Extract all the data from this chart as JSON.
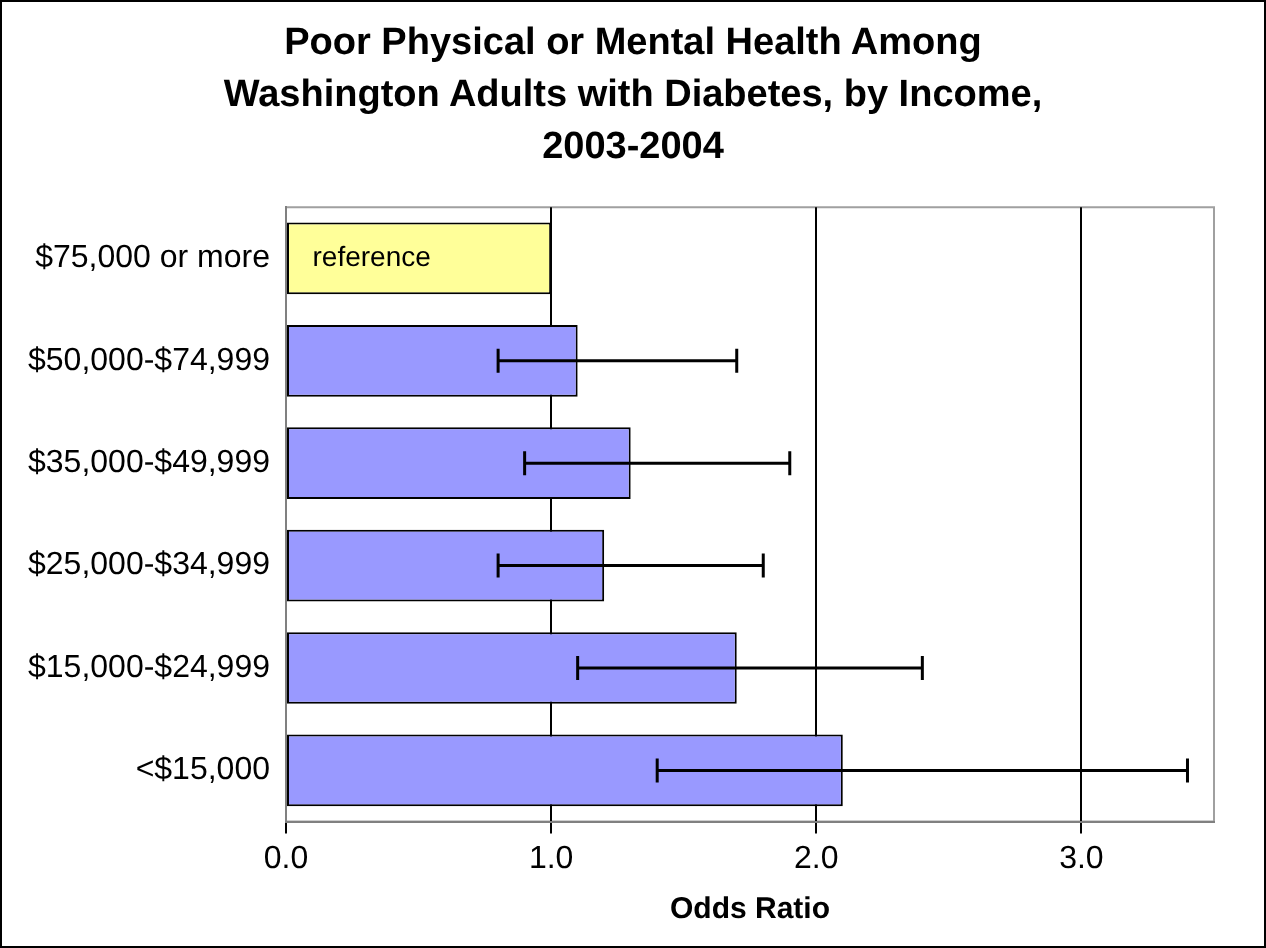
{
  "chart_data": {
    "type": "bar",
    "orientation": "horizontal",
    "title": "Poor Physical or Mental Health Among Washington Adults with Diabetes, by Income, 2003-2004",
    "xlabel": "Odds Ratio",
    "categories": [
      "$75,000 or more",
      "$50,000-$74,999",
      "$35,000-$49,999",
      "$25,000-$34,999",
      "$15,000-$24,999",
      "<$15,000"
    ],
    "values": [
      1.0,
      1.1,
      1.3,
      1.2,
      1.7,
      2.1
    ],
    "colors": [
      "#ffff99",
      "#9999ff",
      "#9999ff",
      "#9999ff",
      "#9999ff",
      "#9999ff"
    ],
    "errors": [
      null,
      [
        0.8,
        1.7
      ],
      [
        0.9,
        1.9
      ],
      [
        0.8,
        1.8
      ],
      [
        1.1,
        2.4
      ],
      [
        1.4,
        3.4
      ]
    ],
    "annotations": [
      {
        "text": "reference",
        "x": 0.1,
        "y": "$75,000 or more"
      }
    ],
    "xlim": [
      0,
      3.5
    ],
    "xticks": [
      {
        "value": 0,
        "label": "0.0"
      },
      {
        "value": 1,
        "label": "1.0"
      },
      {
        "value": 2,
        "label": "2.0"
      },
      {
        "value": 3,
        "label": "3.0"
      }
    ],
    "grid": "x",
    "legend": false
  }
}
